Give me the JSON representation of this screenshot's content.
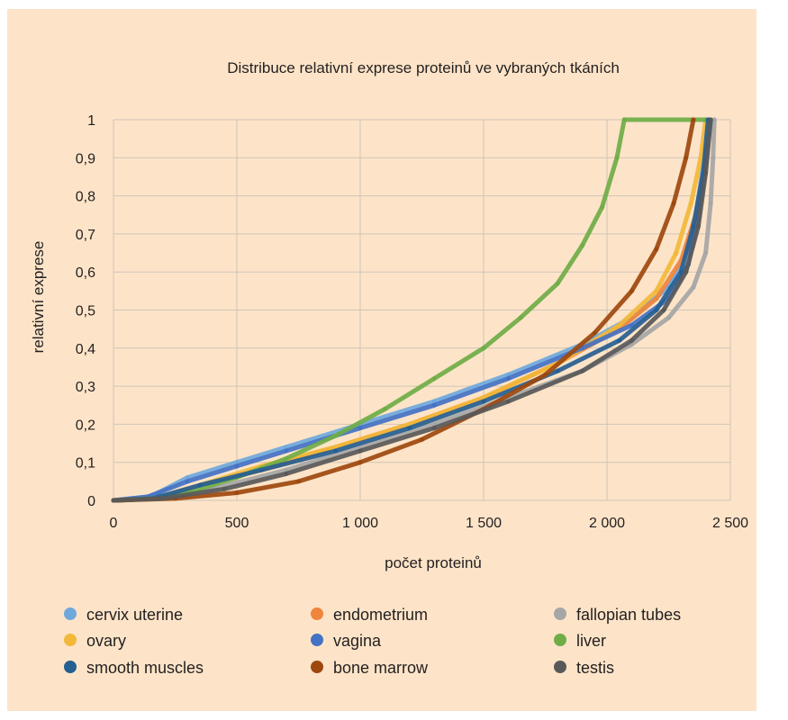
{
  "chart_data": {
    "type": "scatter",
    "title": "Distribuce relativní exprese proteinů ve vybraných tkáních",
    "xlabel": "počet proteinů",
    "ylabel": "relativní exprese",
    "xlim": [
      0,
      2500
    ],
    "ylim": [
      0,
      1
    ],
    "x_ticks": [
      0,
      500,
      1000,
      1500,
      2000,
      2500
    ],
    "x_tick_labels": [
      "0",
      "500",
      "1 000",
      "1 500",
      "2 000",
      "2 500"
    ],
    "y_ticks": [
      0,
      0.1,
      0.2,
      0.3,
      0.4,
      0.5,
      0.6,
      0.7,
      0.8,
      0.9,
      1
    ],
    "y_tick_labels": [
      "0",
      "0,1",
      "0,2",
      "0,3",
      "0,4",
      "0,5",
      "0,6",
      "0,7",
      "0,8",
      "0,9",
      "1"
    ],
    "grid": true,
    "legend_position": "bottom",
    "series": [
      {
        "name": "cervix uterine",
        "color": "#6fa8dc",
        "points": [
          [
            0,
            0
          ],
          [
            150,
            0.01
          ],
          [
            300,
            0.06
          ],
          [
            500,
            0.1
          ],
          [
            700,
            0.14
          ],
          [
            1000,
            0.2
          ],
          [
            1300,
            0.26
          ],
          [
            1600,
            0.33
          ],
          [
            1900,
            0.41
          ],
          [
            2100,
            0.48
          ],
          [
            2250,
            0.56
          ],
          [
            2320,
            0.65
          ],
          [
            2360,
            0.75
          ],
          [
            2390,
            0.88
          ],
          [
            2410,
            1
          ]
        ]
      },
      {
        "name": "endometrium",
        "color": "#f0853c",
        "points": [
          [
            0,
            0
          ],
          [
            180,
            0.005
          ],
          [
            350,
            0.04
          ],
          [
            600,
            0.08
          ],
          [
            900,
            0.14
          ],
          [
            1200,
            0.2
          ],
          [
            1500,
            0.27
          ],
          [
            1800,
            0.36
          ],
          [
            2050,
            0.45
          ],
          [
            2200,
            0.53
          ],
          [
            2300,
            0.63
          ],
          [
            2360,
            0.75
          ],
          [
            2400,
            0.9
          ],
          [
            2420,
            1
          ]
        ]
      },
      {
        "name": "fallopian tubes",
        "color": "#a6a6a6",
        "points": [
          [
            0,
            0
          ],
          [
            200,
            0.005
          ],
          [
            400,
            0.03
          ],
          [
            700,
            0.08
          ],
          [
            1000,
            0.14
          ],
          [
            1300,
            0.2
          ],
          [
            1600,
            0.27
          ],
          [
            1900,
            0.34
          ],
          [
            2100,
            0.41
          ],
          [
            2250,
            0.48
          ],
          [
            2350,
            0.56
          ],
          [
            2400,
            0.65
          ],
          [
            2420,
            0.78
          ],
          [
            2430,
            0.9
          ],
          [
            2435,
            1
          ]
        ]
      },
      {
        "name": "ovary",
        "color": "#f2b83a",
        "points": [
          [
            0,
            0
          ],
          [
            170,
            0.005
          ],
          [
            350,
            0.04
          ],
          [
            600,
            0.09
          ],
          [
            900,
            0.14
          ],
          [
            1200,
            0.2
          ],
          [
            1500,
            0.27
          ],
          [
            1800,
            0.36
          ],
          [
            2050,
            0.46
          ],
          [
            2200,
            0.55
          ],
          [
            2280,
            0.65
          ],
          [
            2340,
            0.78
          ],
          [
            2380,
            0.9
          ],
          [
            2400,
            1
          ]
        ]
      },
      {
        "name": "vagina",
        "color": "#4472c4",
        "points": [
          [
            0,
            0
          ],
          [
            140,
            0.01
          ],
          [
            300,
            0.05
          ],
          [
            500,
            0.09
          ],
          [
            700,
            0.13
          ],
          [
            1000,
            0.19
          ],
          [
            1300,
            0.25
          ],
          [
            1600,
            0.32
          ],
          [
            1900,
            0.4
          ],
          [
            2100,
            0.46
          ],
          [
            2250,
            0.53
          ],
          [
            2330,
            0.62
          ],
          [
            2370,
            0.74
          ],
          [
            2400,
            0.88
          ],
          [
            2420,
            1
          ]
        ]
      },
      {
        "name": "liver",
        "color": "#70ad47",
        "points": [
          [
            0,
            0
          ],
          [
            150,
            0.005
          ],
          [
            300,
            0.02
          ],
          [
            500,
            0.06
          ],
          [
            700,
            0.11
          ],
          [
            900,
            0.17
          ],
          [
            1100,
            0.24
          ],
          [
            1300,
            0.32
          ],
          [
            1500,
            0.4
          ],
          [
            1650,
            0.48
          ],
          [
            1800,
            0.57
          ],
          [
            1900,
            0.67
          ],
          [
            1980,
            0.77
          ],
          [
            2040,
            0.9
          ],
          [
            2070,
            1
          ],
          [
            2400,
            1
          ]
        ]
      },
      {
        "name": "smooth muscles",
        "color": "#255e91",
        "points": [
          [
            0,
            0
          ],
          [
            160,
            0.005
          ],
          [
            350,
            0.04
          ],
          [
            600,
            0.08
          ],
          [
            900,
            0.13
          ],
          [
            1200,
            0.19
          ],
          [
            1500,
            0.26
          ],
          [
            1800,
            0.34
          ],
          [
            2050,
            0.42
          ],
          [
            2200,
            0.5
          ],
          [
            2300,
            0.6
          ],
          [
            2350,
            0.72
          ],
          [
            2390,
            0.86
          ],
          [
            2410,
            1
          ]
        ]
      },
      {
        "name": "bone marrow",
        "color": "#9e480e",
        "points": [
          [
            0,
            0
          ],
          [
            250,
            0.005
          ],
          [
            500,
            0.02
          ],
          [
            750,
            0.05
          ],
          [
            1000,
            0.1
          ],
          [
            1250,
            0.16
          ],
          [
            1500,
            0.24
          ],
          [
            1750,
            0.33
          ],
          [
            1950,
            0.44
          ],
          [
            2100,
            0.55
          ],
          [
            2200,
            0.66
          ],
          [
            2270,
            0.78
          ],
          [
            2320,
            0.9
          ],
          [
            2350,
            1
          ]
        ]
      },
      {
        "name": "testis",
        "color": "#595959",
        "points": [
          [
            0,
            0
          ],
          [
            200,
            0.005
          ],
          [
            450,
            0.03
          ],
          [
            700,
            0.07
          ],
          [
            1000,
            0.13
          ],
          [
            1300,
            0.19
          ],
          [
            1600,
            0.26
          ],
          [
            1900,
            0.34
          ],
          [
            2100,
            0.42
          ],
          [
            2230,
            0.5
          ],
          [
            2320,
            0.6
          ],
          [
            2370,
            0.72
          ],
          [
            2400,
            0.86
          ],
          [
            2420,
            1
          ]
        ]
      }
    ]
  }
}
